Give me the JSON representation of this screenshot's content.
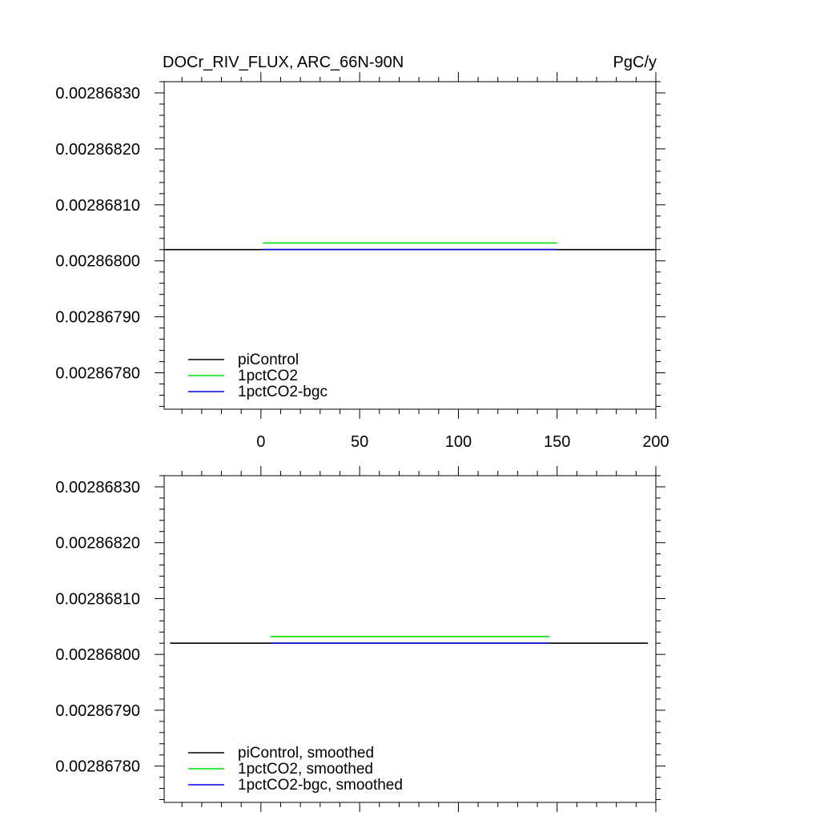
{
  "chart_data": [
    {
      "type": "line",
      "title": "DOCr_RIV_FLUX, ARC_66N-90N",
      "units": "PgC/y",
      "xlabel": "",
      "ylabel": "",
      "xlim": [
        -49,
        200
      ],
      "ylim": [
        0.002867735,
        0.00286832
      ],
      "x_ticks": [
        0,
        50,
        100,
        150,
        200
      ],
      "y_ticks": [
        0.0028683,
        0.0028682,
        0.0028681,
        0.002868,
        0.0028679,
        0.0028678
      ],
      "x_tick_labels": [
        "0",
        "50",
        "100",
        "150",
        "200"
      ],
      "y_tick_labels": [
        "0.00286830",
        "0.00286820",
        "0.00286810",
        "0.00286800",
        "0.00286790",
        "0.00286780"
      ],
      "grid": false,
      "legend_position": "bottom-left",
      "series": [
        {
          "name": "piControl",
          "color": "#000000",
          "x": [
            -49,
            200
          ],
          "y": [
            0.00286802,
            0.00286802
          ]
        },
        {
          "name": "1pctCO2",
          "color": "#00e000",
          "x": [
            1,
            150
          ],
          "y": [
            0.002868032,
            0.002868032
          ]
        },
        {
          "name": "1pctCO2-bgc",
          "color": "#0000e0",
          "x": [
            1,
            150
          ],
          "y": [
            0.00286802,
            0.00286802
          ]
        }
      ]
    },
    {
      "type": "line",
      "title": "",
      "units": "",
      "xlabel": "",
      "ylabel": "",
      "xlim": [
        -49,
        200
      ],
      "ylim": [
        0.002867735,
        0.00286832
      ],
      "x_ticks": [
        0,
        50,
        100,
        150,
        200
      ],
      "y_ticks": [
        0.0028683,
        0.0028682,
        0.0028681,
        0.002868,
        0.0028679,
        0.0028678
      ],
      "x_tick_labels": [],
      "y_tick_labels": [
        "0.00286830",
        "0.00286820",
        "0.00286810",
        "0.00286800",
        "0.00286790",
        "0.00286780"
      ],
      "grid": false,
      "legend_position": "bottom-left",
      "series": [
        {
          "name": "piControl, smoothed",
          "color": "#000000",
          "x": [
            -46,
            196
          ],
          "y": [
            0.00286802,
            0.00286802
          ]
        },
        {
          "name": "1pctCO2, smoothed",
          "color": "#00e000",
          "x": [
            5,
            146
          ],
          "y": [
            0.002868032,
            0.002868032
          ]
        },
        {
          "name": "1pctCO2-bgc, smoothed",
          "color": "#0000e0",
          "x": [
            5,
            146
          ],
          "y": [
            0.00286802,
            0.00286802
          ]
        }
      ]
    }
  ]
}
